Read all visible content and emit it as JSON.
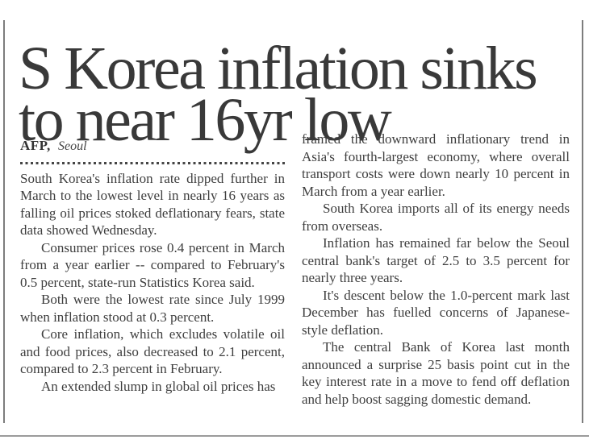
{
  "page": {
    "background_color": "#ffffff",
    "text_color": "#3e3e3e",
    "headline_color": "#393939",
    "rule_color": "#7d7d7d",
    "bottom_rule_color": "#9b9b9b"
  },
  "article": {
    "headline": "S Korea inflation sinks to near 16yr low",
    "byline": {
      "agency": "AFP,",
      "location": "Seoul"
    },
    "left_column": {
      "0": "South Korea's inflation rate dipped further in March to the lowest level in nearly 16 years as falling oil prices stoked deflationary fears, state data showed Wednesday.",
      "1": "Consumer prices rose 0.4 percent in March from a year earlier -- compared to February's 0.5 percent, state-run Statistics Korea said.",
      "2": "Both were the lowest rate since July 1999 when inflation stood at 0.3 percent.",
      "3": "Core inflation, which excludes volatile oil and food prices, also decreased to 2.1 percent, compared to 2.3 percent in February.",
      "4": "An extended slump in global oil prices has"
    },
    "right_column": {
      "0": "framed the downward inflationary trend in Asia's fourth-largest economy, where overall transport costs were down nearly 10 percent in March from a year earlier.",
      "1": "South Korea imports all of its energy needs from overseas.",
      "2": "Inflation has remained far below the Seoul central bank's target of 2.5 to 3.5 percent for nearly three years.",
      "3": "It's descent below the 1.0-percent mark last December has fuelled concerns of Japanese-style deflation.",
      "4": "The central Bank of Korea last month announced a surprise 25 basis point cut in the key interest rate in a move to fend off deflation and help boost sagging domestic demand."
    }
  }
}
